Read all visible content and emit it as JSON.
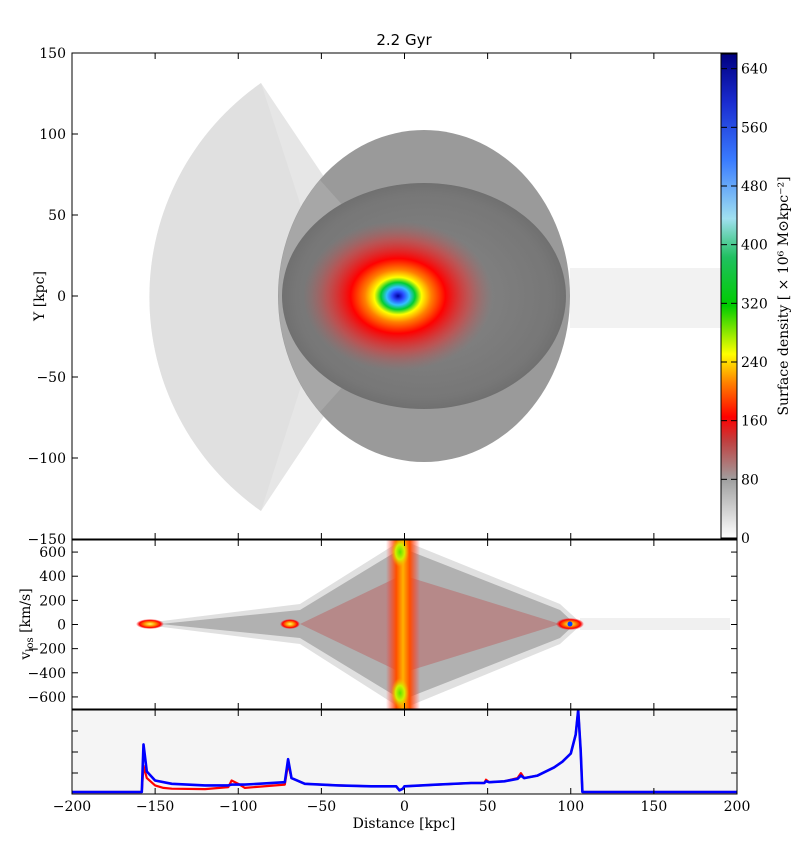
{
  "title": "2.2 Gyr",
  "colors": {
    "series_red": "#ff0000",
    "series_blue": "#0000ff",
    "panel3_bg": "#f5f5f5"
  },
  "chart_data": [
    {
      "type": "heatmap",
      "panel": "surface-density-map",
      "ylabel": "Y [kpc]",
      "xlim": [
        -200,
        200
      ],
      "ylim": [
        -150,
        150
      ],
      "yticks": [
        "150",
        "100",
        "50",
        "0",
        "−50",
        "−100",
        "−150"
      ],
      "colorbar": {
        "label": "Surface density [ × 10⁶ M⊙kpc⁻²]",
        "range": [
          0,
          660
        ],
        "ticks": [
          "0",
          "80",
          "160",
          "240",
          "320",
          "400",
          "480",
          "560",
          "640"
        ],
        "colormap": "grey-red-yellow-green-blue"
      },
      "features": [
        {
          "kind": "wedge",
          "center": [
            0,
            0
          ],
          "radius": 160,
          "angle_deg": [
            115,
            245
          ],
          "level": 12
        },
        {
          "kind": "disk",
          "center": [
            -12,
            0
          ],
          "radius": 100,
          "level": 35
        },
        {
          "kind": "disk",
          "center": [
            -12,
            0
          ],
          "radius": 70,
          "level": 65
        },
        {
          "kind": "core",
          "center": [
            -3,
            0
          ],
          "peak": 650
        }
      ]
    },
    {
      "type": "heatmap",
      "panel": "phase-space",
      "ylabel": "v_los [km/s]",
      "xlim": [
        -200,
        200
      ],
      "ylim": [
        -700,
        700
      ],
      "yticks": [
        "600",
        "400",
        "200",
        "0",
        "−200",
        "−400",
        "−600"
      ],
      "features": [
        {
          "kind": "envelope",
          "x": [
            -160,
            -3,
            105
          ],
          "vmax": 560
        },
        {
          "kind": "band",
          "x": -3,
          "width": 8
        },
        {
          "kind": "hotspot",
          "x": -155,
          "v": 0
        },
        {
          "kind": "hotspot",
          "x": -70,
          "v": 0
        },
        {
          "kind": "hotspot",
          "x": 103,
          "v": 0
        }
      ]
    },
    {
      "type": "line",
      "panel": "density-profile",
      "xlabel": "Distance [kpc]",
      "xlim": [
        -200,
        200
      ],
      "ylim": [
        0,
        1
      ],
      "xticks": [
        "−200",
        "−150",
        "−100",
        "−50",
        "0",
        "50",
        "100",
        "150",
        "200"
      ],
      "series": [
        {
          "color": "#ff0000",
          "x": [
            -200,
            -158,
            -157,
            -155,
            -150,
            -145,
            -140,
            -120,
            -106,
            -104,
            -100,
            -96,
            -72,
            -70,
            -68,
            -60,
            -40,
            -20,
            -5,
            -3,
            -1,
            0,
            20,
            40,
            48,
            49,
            51,
            60,
            68,
            70,
            72,
            80,
            90,
            95,
            100,
            103,
            104.5,
            106,
            107,
            110,
            200
          ],
          "y": [
            0,
            0,
            0.32,
            0.17,
            0.08,
            0.05,
            0.04,
            0.035,
            0.06,
            0.14,
            0.1,
            0.05,
            0.09,
            0.34,
            0.17,
            0.1,
            0.08,
            0.07,
            0.07,
            0.02,
            0.04,
            0.07,
            0.09,
            0.11,
            0.11,
            0.15,
            0.12,
            0.13,
            0.17,
            0.23,
            0.17,
            0.2,
            0.3,
            0.37,
            0.47,
            0.7,
            1.0,
            0.5,
            0,
            0,
            0
          ]
        },
        {
          "color": "#0000ff",
          "x": [
            -200,
            -158,
            -157,
            -155,
            -150,
            -140,
            -120,
            -106,
            -104,
            -100,
            -96,
            -72,
            -70,
            -68,
            -60,
            -40,
            -20,
            -5,
            -3,
            -1,
            0,
            20,
            40,
            48,
            49,
            51,
            60,
            68,
            70,
            72,
            80,
            90,
            95,
            100,
            103,
            104.5,
            106,
            107,
            110,
            200
          ],
          "y": [
            0,
            0,
            0.58,
            0.25,
            0.14,
            0.1,
            0.08,
            0.08,
            0.09,
            0.09,
            0.09,
            0.12,
            0.4,
            0.17,
            0.1,
            0.08,
            0.07,
            0.07,
            0.02,
            0.04,
            0.07,
            0.09,
            0.11,
            0.11,
            0.13,
            0.12,
            0.13,
            0.16,
            0.2,
            0.17,
            0.2,
            0.3,
            0.37,
            0.47,
            0.7,
            1.0,
            0.5,
            0,
            0,
            0
          ]
        }
      ]
    }
  ]
}
